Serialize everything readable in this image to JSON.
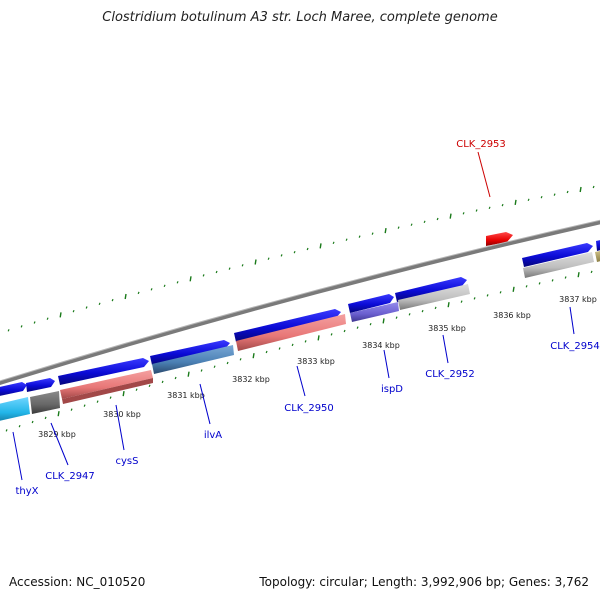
{
  "title": "Clostridium botulinum A3 str. Loch Maree, complete genome",
  "footer": {
    "accession": "Accession: NC_010520",
    "summary": "Topology: circular; Length: 3,992,906 bp; Genes: 3,762"
  },
  "colors": {
    "backbone": "#808080",
    "tick": "#1a7a1a",
    "gene_forward": "#0b0bd6",
    "gene_reverse": "#0b0bd6",
    "cds_pink": "#e87777",
    "cds_steel": "#4a7fb3",
    "cds_purple": "#6a5fcf",
    "cds_gray": "#b9b9b9",
    "cds_dark": "#666666",
    "cds_cyan": "#22b5e8",
    "cds_khaki": "#b8a86a",
    "highlight_gene": "#e60000",
    "label_blue": "#0000cc",
    "label_red": "#cc0000"
  },
  "ruler": {
    "unit": "kbp",
    "positions_kbp": [
      3829,
      3830,
      3831,
      3832,
      3833,
      3834,
      3835,
      3836,
      3837
    ],
    "labels": [
      "3829 kbp",
      "3830 kbp",
      "3831 kbp",
      "3832 kbp",
      "3833 kbp",
      "3834 kbp",
      "3835 kbp",
      "3836 kbp",
      "3837 kbp"
    ]
  },
  "gene_labels": [
    {
      "name": "thyX",
      "color": "label_blue"
    },
    {
      "name": "CLK_2947",
      "color": "label_blue"
    },
    {
      "name": "cysS",
      "color": "label_blue"
    },
    {
      "name": "ilvA",
      "color": "label_blue"
    },
    {
      "name": "CLK_2950",
      "color": "label_blue"
    },
    {
      "name": "ispD",
      "color": "label_blue"
    },
    {
      "name": "CLK_2952",
      "color": "label_blue"
    },
    {
      "name": "CLK_2954",
      "color": "label_blue"
    },
    {
      "name": "CLK_2953",
      "color": "label_red"
    }
  ]
}
